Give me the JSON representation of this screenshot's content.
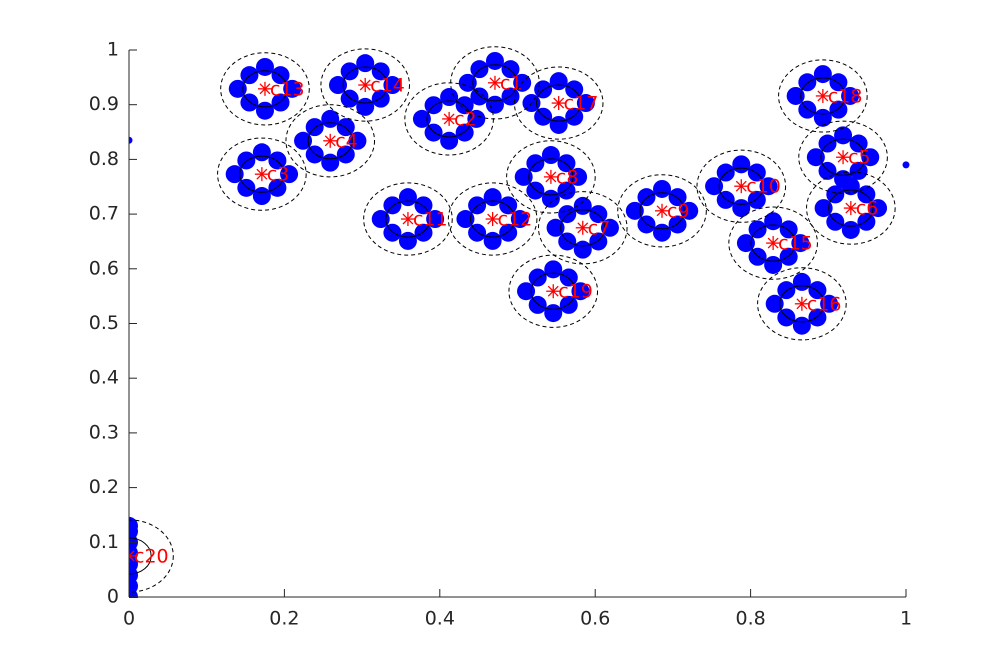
{
  "chart_data": {
    "type": "scatter",
    "xlim": [
      0,
      1
    ],
    "ylim": [
      0,
      1
    ],
    "xticks": [
      0,
      0.2,
      0.4,
      0.6,
      0.8,
      1
    ],
    "yticks": [
      0,
      0.1,
      0.2,
      0.3,
      0.4,
      0.5,
      0.6,
      0.7,
      0.8,
      0.9,
      1
    ],
    "point_color": "#0000ff",
    "center_color": "#ff0000",
    "ellipse_rx": 0.057,
    "ellipse_ry": 0.066,
    "clusters": [
      {
        "name": "c1",
        "center_x": 0.471,
        "center_y": 0.94,
        "x": [
          0.491,
          0.451,
          0.491,
          0.451,
          0.506,
          0.436,
          0.471,
          0.471
        ],
        "y": [
          0.965,
          0.965,
          0.915,
          0.915,
          0.94,
          0.94,
          0.98,
          0.9
        ]
      },
      {
        "name": "c2",
        "center_x": 0.412,
        "center_y": 0.874,
        "x": [
          0.432,
          0.392,
          0.432,
          0.392,
          0.447,
          0.377,
          0.412,
          0.412
        ],
        "y": [
          0.899,
          0.899,
          0.849,
          0.849,
          0.874,
          0.874,
          0.914,
          0.834
        ]
      },
      {
        "name": "c3",
        "center_x": 0.171,
        "center_y": 0.773,
        "x": [
          0.191,
          0.151,
          0.191,
          0.151,
          0.206,
          0.136,
          0.171,
          0.171
        ],
        "y": [
          0.798,
          0.798,
          0.748,
          0.748,
          0.773,
          0.773,
          0.813,
          0.733
        ]
      },
      {
        "name": "c4",
        "center_x": 0.259,
        "center_y": 0.834,
        "x": [
          0.279,
          0.239,
          0.279,
          0.239,
          0.294,
          0.224,
          0.259,
          0.259
        ],
        "y": [
          0.859,
          0.859,
          0.809,
          0.809,
          0.834,
          0.834,
          0.874,
          0.794
        ]
      },
      {
        "name": "c5",
        "center_x": 0.919,
        "center_y": 0.804,
        "x": [
          0.939,
          0.899,
          0.939,
          0.899,
          0.954,
          0.884,
          0.919,
          0.919
        ],
        "y": [
          0.829,
          0.829,
          0.779,
          0.779,
          0.804,
          0.804,
          0.844,
          0.764
        ]
      },
      {
        "name": "c6",
        "center_x": 0.929,
        "center_y": 0.711,
        "x": [
          0.949,
          0.909,
          0.949,
          0.909,
          0.964,
          0.894,
          0.929,
          0.929
        ],
        "y": [
          0.736,
          0.736,
          0.686,
          0.686,
          0.711,
          0.711,
          0.751,
          0.671
        ]
      },
      {
        "name": "c7",
        "center_x": 0.584,
        "center_y": 0.675,
        "x": [
          0.604,
          0.564,
          0.604,
          0.564,
          0.619,
          0.549,
          0.584,
          0.584
        ],
        "y": [
          0.7,
          0.7,
          0.65,
          0.65,
          0.675,
          0.675,
          0.715,
          0.635
        ]
      },
      {
        "name": "c8",
        "center_x": 0.543,
        "center_y": 0.768,
        "x": [
          0.563,
          0.523,
          0.563,
          0.523,
          0.578,
          0.508,
          0.543,
          0.543
        ],
        "y": [
          0.793,
          0.793,
          0.743,
          0.743,
          0.768,
          0.768,
          0.808,
          0.728
        ]
      },
      {
        "name": "c9",
        "center_x": 0.686,
        "center_y": 0.706,
        "x": [
          0.706,
          0.666,
          0.706,
          0.666,
          0.721,
          0.651,
          0.686,
          0.686
        ],
        "y": [
          0.731,
          0.731,
          0.681,
          0.681,
          0.706,
          0.706,
          0.746,
          0.666
        ]
      },
      {
        "name": "c10",
        "center_x": 0.788,
        "center_y": 0.751,
        "x": [
          0.808,
          0.768,
          0.808,
          0.768,
          0.823,
          0.753,
          0.788,
          0.788
        ],
        "y": [
          0.776,
          0.776,
          0.726,
          0.726,
          0.751,
          0.751,
          0.791,
          0.711
        ]
      },
      {
        "name": "c11",
        "center_x": 0.359,
        "center_y": 0.691,
        "x": [
          0.379,
          0.339,
          0.379,
          0.339,
          0.394,
          0.324,
          0.359,
          0.359
        ],
        "y": [
          0.716,
          0.716,
          0.666,
          0.666,
          0.691,
          0.691,
          0.731,
          0.651
        ]
      },
      {
        "name": "c12",
        "center_x": 0.468,
        "center_y": 0.691,
        "x": [
          0.488,
          0.448,
          0.488,
          0.448,
          0.503,
          0.433,
          0.468,
          0.468
        ],
        "y": [
          0.716,
          0.716,
          0.666,
          0.666,
          0.691,
          0.691,
          0.731,
          0.651
        ]
      },
      {
        "name": "c13",
        "center_x": 0.175,
        "center_y": 0.929,
        "x": [
          0.195,
          0.155,
          0.195,
          0.155,
          0.21,
          0.14,
          0.175,
          0.175
        ],
        "y": [
          0.954,
          0.954,
          0.904,
          0.904,
          0.929,
          0.929,
          0.969,
          0.889
        ]
      },
      {
        "name": "c14",
        "center_x": 0.304,
        "center_y": 0.936,
        "x": [
          0.324,
          0.284,
          0.324,
          0.284,
          0.339,
          0.269,
          0.304,
          0.304
        ],
        "y": [
          0.961,
          0.961,
          0.911,
          0.911,
          0.936,
          0.936,
          0.976,
          0.896
        ]
      },
      {
        "name": "c15",
        "center_x": 0.829,
        "center_y": 0.647,
        "x": [
          0.849,
          0.809,
          0.849,
          0.809,
          0.864,
          0.794,
          0.829,
          0.829
        ],
        "y": [
          0.672,
          0.672,
          0.622,
          0.622,
          0.647,
          0.647,
          0.687,
          0.607
        ]
      },
      {
        "name": "c16",
        "center_x": 0.866,
        "center_y": 0.536,
        "x": [
          0.886,
          0.846,
          0.886,
          0.846,
          0.901,
          0.831,
          0.866,
          0.866
        ],
        "y": [
          0.561,
          0.561,
          0.511,
          0.511,
          0.536,
          0.536,
          0.576,
          0.496
        ]
      },
      {
        "name": "c17",
        "center_x": 0.553,
        "center_y": 0.903,
        "x": [
          0.573,
          0.533,
          0.573,
          0.533,
          0.588,
          0.518,
          0.553,
          0.553
        ],
        "y": [
          0.928,
          0.928,
          0.878,
          0.878,
          0.903,
          0.903,
          0.943,
          0.863
        ]
      },
      {
        "name": "c18",
        "center_x": 0.893,
        "center_y": 0.916,
        "x": [
          0.913,
          0.873,
          0.913,
          0.873,
          0.928,
          0.858,
          0.893,
          0.893
        ],
        "y": [
          0.941,
          0.941,
          0.891,
          0.891,
          0.916,
          0.916,
          0.956,
          0.876
        ]
      },
      {
        "name": "c19",
        "center_x": 0.546,
        "center_y": 0.559,
        "x": [
          0.566,
          0.526,
          0.566,
          0.526,
          0.581,
          0.511,
          0.546,
          0.546
        ],
        "y": [
          0.584,
          0.584,
          0.534,
          0.534,
          0.559,
          0.559,
          0.599,
          0.519
        ]
      },
      {
        "name": "c20",
        "center_x": 0,
        "center_y": 0.075,
        "x": [
          0,
          0,
          0,
          0,
          0,
          0,
          0,
          0
        ],
        "y": [
          0,
          0.02,
          0.04,
          0.06,
          0.08,
          0.1,
          0.12,
          0.13
        ]
      }
    ],
    "outliers": {
      "x": [
        0,
        1
      ],
      "y": [
        0.835,
        0.79
      ]
    }
  }
}
